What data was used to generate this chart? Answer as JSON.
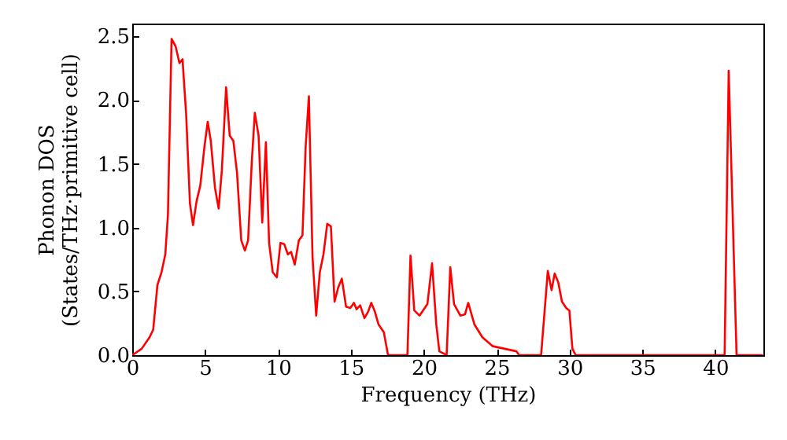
{
  "chart_data": {
    "type": "line",
    "xlabel": "Frequency (THz)",
    "ylabel": "Phonon DOS\n(States/THz·primitive cell)",
    "x": [
      0,
      0.65,
      1.19,
      1.44,
      1.73,
      2.01,
      2.27,
      2.45,
      2.7,
      2.98,
      3.24,
      3.45,
      3.7,
      3.96,
      4.17,
      4.42,
      4.67,
      4.96,
      5.18,
      5.39,
      5.68,
      5.93,
      6.15,
      6.44,
      6.69,
      6.94,
      7.19,
      7.48,
      7.73,
      7.95,
      8.2,
      8.41,
      8.67,
      8.92,
      9.17,
      9.39,
      9.64,
      9.92,
      10.17,
      10.43,
      10.68,
      10.9,
      11.15,
      11.43,
      11.68,
      11.9,
      12.12,
      12.37,
      12.62,
      12.87,
      13.12,
      13.38,
      13.63,
      13.88,
      14.13,
      14.38,
      14.67,
      14.96,
      15.21,
      15.39,
      15.64,
      15.93,
      16.18,
      16.4,
      16.65,
      16.9,
      17.26,
      17.55,
      18.88,
      19.09,
      19.35,
      19.71,
      20.25,
      20.57,
      20.86,
      21.07,
      21.57,
      21.82,
      22.08,
      22.51,
      22.83,
      23.05,
      23.48,
      24.02,
      24.74,
      26.36,
      26.54,
      28.05,
      28.51,
      28.77,
      28.98,
      29.23,
      29.48,
      29.77,
      29.99,
      30.2,
      30.42,
      40.64,
      40.92,
      41.46,
      43.26
    ],
    "series": [
      {
        "color": "#ff0000",
        "values": [
          0,
          0.05,
          0.14,
          0.2,
          0.55,
          0.65,
          0.79,
          1.1,
          2.48,
          2.42,
          2.29,
          2.32,
          1.89,
          1.19,
          1.02,
          1.21,
          1.33,
          1.64,
          1.83,
          1.68,
          1.31,
          1.15,
          1.45,
          2.1,
          1.72,
          1.68,
          1.43,
          0.9,
          0.82,
          0.9,
          1.51,
          1.9,
          1.72,
          1.04,
          1.67,
          0.88,
          0.65,
          0.61,
          0.88,
          0.87,
          0.79,
          0.81,
          0.71,
          0.9,
          0.94,
          1.64,
          2.03,
          0.77,
          0.31,
          0.65,
          0.79,
          1.03,
          1.01,
          0.42,
          0.53,
          0.6,
          0.38,
          0.37,
          0.41,
          0.36,
          0.39,
          0.29,
          0.34,
          0.41,
          0.34,
          0.24,
          0.18,
          0,
          0,
          0.78,
          0.35,
          0.31,
          0.4,
          0.72,
          0.24,
          0.03,
          0,
          0.69,
          0.4,
          0.31,
          0.32,
          0.41,
          0.24,
          0.14,
          0.07,
          0.03,
          0,
          0,
          0.66,
          0.51,
          0.64,
          0.57,
          0.42,
          0.37,
          0.35,
          0.05,
          0,
          0,
          2.23,
          0,
          0
        ]
      }
    ],
    "xlim": [
      0,
      43.3
    ],
    "ylim": [
      0,
      2.6
    ],
    "xticks": [
      0,
      5,
      10,
      15,
      20,
      25,
      30,
      35,
      40
    ],
    "yticks": [
      {
        "value": 0,
        "label": "0.0"
      },
      {
        "value": 0.5,
        "label": "0.5"
      },
      {
        "value": 1,
        "label": "1.0"
      },
      {
        "value": 1.5,
        "label": "1.5"
      },
      {
        "value": 2,
        "label": "2.0"
      },
      {
        "value": 2.5,
        "label": "2.5"
      }
    ],
    "grid": false
  }
}
